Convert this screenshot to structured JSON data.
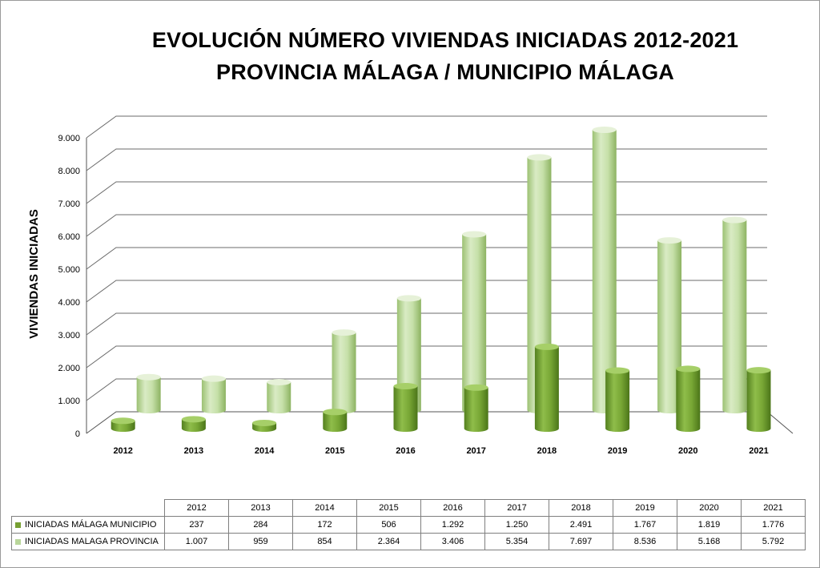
{
  "chart_data": {
    "type": "bar",
    "title": "EVOLUCIÓN NÚMERO VIVIENDAS INICIADAS 2012-2021",
    "subtitle": "PROVINCIA MÁLAGA / MUNICIPIO MÁLAGA",
    "xlabel": "",
    "ylabel": "VIVIENDAS INICIADAS",
    "ylim": [
      0,
      9000
    ],
    "y_ticks": [
      "0",
      "1.000",
      "2.000",
      "3.000",
      "4.000",
      "5.000",
      "6.000",
      "7.000",
      "8.000",
      "9.000"
    ],
    "grid": true,
    "legend": "data-table-below",
    "categories": [
      "2012",
      "2013",
      "2014",
      "2015",
      "2016",
      "2017",
      "2018",
      "2019",
      "2020",
      "2021"
    ],
    "series": [
      {
        "name": "INICIADAS MÁLAGA MUNICIPIO",
        "color": "#77a033",
        "values": [
          237,
          284,
          172,
          506,
          1292,
          1250,
          2491,
          1767,
          1819,
          1776
        ],
        "labels": [
          "237",
          "284",
          "172",
          "506",
          "1.292",
          "1.250",
          "2.491",
          "1.767",
          "1.819",
          "1.776"
        ]
      },
      {
        "name": "INICIADAS MALAGA PROVINCIA",
        "color": "#b9d69a",
        "values": [
          1007,
          959,
          854,
          2364,
          3406,
          5354,
          7697,
          8536,
          5168,
          5792
        ],
        "labels": [
          "1.007",
          "959",
          "854",
          "2.364",
          "3.406",
          "5.354",
          "7.697",
          "8.536",
          "5.168",
          "5.792"
        ]
      }
    ]
  }
}
